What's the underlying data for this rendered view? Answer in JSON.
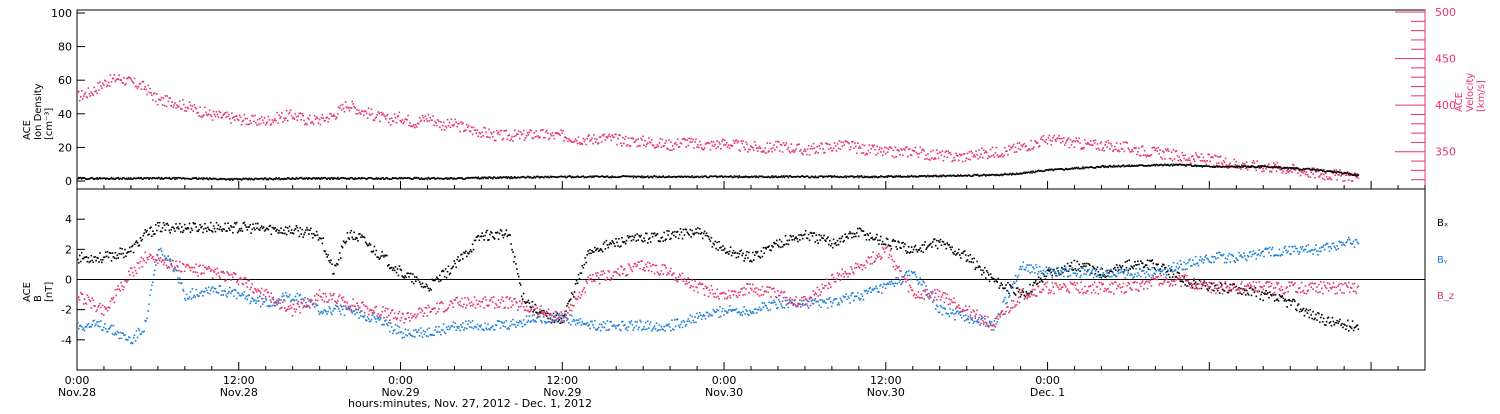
{
  "chart_data": [
    {
      "type": "scatter",
      "panel": "top",
      "ylabel_left": [
        "ACE",
        "Ion Density",
        "[cm⁻³]"
      ],
      "ylabel_right": [
        "ACE",
        "Velocity",
        "[km/s]"
      ],
      "ylim_left": [
        0,
        100
      ],
      "ylim_right": [
        310,
        500
      ],
      "yticks_left": [
        "0",
        "20",
        "40",
        "60",
        "80",
        "100"
      ],
      "yticks_right": [
        "350",
        "400",
        "450",
        "500"
      ],
      "colors": {
        "density": "#000000",
        "velocity": "#e8336a"
      },
      "series": [
        {
          "key": "velocity",
          "axis": "right",
          "x": [
            0,
            1,
            2,
            3,
            4,
            5,
            6,
            7,
            8,
            9,
            10,
            11,
            12,
            13,
            14,
            15,
            16,
            17,
            18,
            19,
            20,
            21,
            22,
            23,
            24,
            25,
            26,
            27,
            28,
            29,
            30,
            31,
            32,
            33,
            34,
            35,
            36,
            37,
            38,
            39,
            40,
            41,
            42,
            43,
            44,
            45,
            46,
            47,
            48,
            49,
            50,
            51,
            52,
            53,
            54,
            55,
            56,
            57,
            58,
            59,
            60,
            61,
            62,
            63,
            64,
            65,
            66,
            67,
            68,
            69,
            70,
            71,
            72,
            73,
            74,
            75,
            76,
            77,
            78,
            79,
            80,
            81,
            82,
            83,
            84,
            85,
            86,
            87,
            88,
            89,
            90,
            91,
            92,
            93,
            94,
            95
          ],
          "y": [
            410,
            415,
            425,
            430,
            425,
            420,
            405,
            405,
            400,
            395,
            390,
            388,
            386,
            384,
            384,
            388,
            390,
            385,
            385,
            390,
            402,
            395,
            390,
            385,
            388,
            382,
            388,
            380,
            380,
            375,
            372,
            368,
            368,
            368,
            370,
            368,
            368,
            365,
            364,
            366,
            364,
            362,
            362,
            360,
            358,
            362,
            358,
            358,
            360,
            357,
            356,
            354,
            357,
            355,
            352,
            355,
            356,
            358,
            354,
            352,
            350,
            350,
            352,
            348,
            347,
            345,
            346,
            349,
            350,
            352,
            356,
            360,
            364,
            362,
            360,
            358,
            358,
            356,
            355,
            352,
            350,
            348,
            345,
            344,
            342,
            340,
            338,
            336,
            335,
            334,
            332,
            330,
            327,
            326,
            325,
            324
          ]
        },
        {
          "key": "density",
          "axis": "left",
          "x": [
            0,
            4,
            8,
            12,
            16,
            20,
            24,
            28,
            32,
            36,
            40,
            44,
            48,
            52,
            56,
            60,
            64,
            68,
            70,
            72,
            74,
            76,
            78,
            80,
            82,
            84,
            86,
            88,
            90,
            92,
            94,
            95
          ],
          "y": [
            2,
            2,
            2,
            1.5,
            2,
            2,
            2,
            2,
            2.5,
            3,
            3,
            3,
            3,
            3,
            3,
            3,
            3.5,
            4,
            5,
            7,
            8,
            9,
            9.5,
            10,
            10,
            9,
            9,
            9,
            8,
            7,
            5,
            4
          ]
        }
      ]
    },
    {
      "type": "scatter",
      "panel": "bottom",
      "ylabel": [
        "ACE",
        "B",
        "[nT]"
      ],
      "ylim": [
        -6,
        6
      ],
      "yticks": [
        "-4",
        "-2",
        "0",
        "2",
        "4"
      ],
      "zero_line": true,
      "legend": [
        "Bₓ",
        "Bᵧ",
        "B_z"
      ],
      "legend_position": "right",
      "colors": {
        "Bx": "#000000",
        "By": "#1f7fd8",
        "Bz": "#e8336a"
      },
      "series": [
        {
          "key": "Bx",
          "x": [
            0,
            2,
            4,
            5,
            6,
            7,
            8,
            10,
            12,
            14,
            16,
            18,
            19,
            20,
            21,
            22,
            24,
            26,
            28,
            30,
            32,
            33,
            34,
            35,
            36,
            38,
            40,
            42,
            44,
            46,
            48,
            50,
            52,
            54,
            56,
            58,
            60,
            62,
            64,
            66,
            68,
            70,
            72,
            74,
            76,
            78,
            80,
            82,
            84,
            86,
            88,
            90,
            92,
            94,
            95
          ],
          "y": [
            1.5,
            1.5,
            2,
            3,
            3.5,
            3.5,
            3.5,
            3.5,
            3.5,
            3.4,
            3.3,
            3,
            0.5,
            3,
            2.8,
            2,
            0.5,
            -0.5,
            1,
            3,
            3,
            -1,
            -2,
            -2.5,
            -2.5,
            2,
            2.5,
            2.8,
            3,
            3.2,
            2,
            1.5,
            2.5,
            3,
            2.5,
            3.2,
            2.5,
            2,
            2.5,
            1.5,
            0,
            -1,
            0.5,
            1,
            0.5,
            1,
            1,
            0,
            -0.5,
            -0.5,
            -1,
            -1.5,
            -2.5,
            -3,
            -3
          ]
        },
        {
          "key": "By",
          "x": [
            0,
            2,
            4,
            5,
            6,
            7,
            8,
            10,
            12,
            14,
            16,
            18,
            20,
            22,
            24,
            26,
            28,
            30,
            32,
            34,
            36,
            38,
            40,
            42,
            44,
            46,
            48,
            50,
            52,
            54,
            56,
            58,
            60,
            62,
            64,
            66,
            68,
            70,
            72,
            74,
            76,
            78,
            80,
            82,
            84,
            86,
            88,
            90,
            92,
            94,
            95
          ],
          "y": [
            -3,
            -3,
            -4,
            -3,
            2,
            1,
            -1,
            -0.5,
            -1,
            -1.5,
            -1,
            -2,
            -2,
            -2.5,
            -3.5,
            -3.5,
            -3,
            -3,
            -3,
            -2.5,
            -2.5,
            -3,
            -3,
            -3,
            -3,
            -2.5,
            -2,
            -2,
            -1.5,
            -1.5,
            -1.5,
            -1,
            -0.5,
            0.5,
            -2,
            -2.5,
            -3,
            1,
            0.5,
            0.5,
            0.5,
            0.5,
            0.5,
            1,
            1.5,
            1.5,
            1.8,
            2,
            2,
            2.5,
            2.5
          ]
        },
        {
          "key": "Bz",
          "x": [
            0,
            2,
            4,
            5,
            6,
            7,
            8,
            10,
            12,
            14,
            16,
            18,
            20,
            22,
            24,
            26,
            28,
            30,
            32,
            34,
            36,
            38,
            40,
            42,
            44,
            46,
            48,
            50,
            52,
            54,
            56,
            58,
            60,
            62,
            64,
            66,
            68,
            70,
            72,
            74,
            76,
            78,
            80,
            82,
            84,
            86,
            88,
            90,
            92,
            94,
            95
          ],
          "y": [
            -1,
            -2,
            0.5,
            1.5,
            1.5,
            1,
            0.8,
            0.5,
            0,
            -1,
            -2,
            -1,
            -1.5,
            -2,
            -2.5,
            -2,
            -1.5,
            -1.5,
            -1.5,
            -2,
            -2.5,
            0,
            0.5,
            1,
            0.5,
            -0.5,
            -1,
            -0.5,
            -1,
            -1.5,
            0,
            1,
            2,
            -1,
            -1,
            -2,
            -3,
            -1,
            -0.5,
            -0.5,
            -0.5,
            -0.5,
            0,
            0,
            -0.5,
            -0.5,
            -0.5,
            -0.5,
            -0.5,
            -0.5,
            -0.5
          ]
        }
      ]
    }
  ],
  "time_axis": {
    "xlim": [
      0,
      100
    ],
    "ticks": [
      {
        "x": 0,
        "time": "0:00",
        "date": "Nov.28"
      },
      {
        "x": 12,
        "time": "12:00",
        "date": "Nov.28"
      },
      {
        "x": 24,
        "time": "0:00",
        "date": "Nov.29"
      },
      {
        "x": 36,
        "time": "12:00",
        "date": "Nov.29"
      },
      {
        "x": 48,
        "time": "0:00",
        "date": "Nov.30"
      },
      {
        "x": 60,
        "time": "12:00",
        "date": "Nov.30"
      },
      {
        "x": 72,
        "time": "0:00",
        "date": "Dec. 1"
      }
    ],
    "xlabel": "hours:minutes, Nov. 27, 2012 - Dec. 1, 2012"
  }
}
